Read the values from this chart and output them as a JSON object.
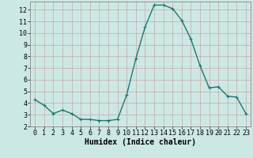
{
  "x": [
    0,
    1,
    2,
    3,
    4,
    5,
    6,
    7,
    8,
    9,
    10,
    11,
    12,
    13,
    14,
    15,
    16,
    17,
    18,
    19,
    20,
    21,
    22,
    23
  ],
  "y": [
    4.3,
    3.8,
    3.1,
    3.4,
    3.1,
    2.6,
    2.6,
    2.5,
    2.5,
    2.6,
    4.7,
    7.8,
    10.5,
    12.4,
    12.4,
    12.1,
    11.1,
    9.5,
    7.2,
    5.3,
    5.4,
    4.6,
    4.5,
    3.1
  ],
  "line_color": "#1a7a6e",
  "marker": "+",
  "marker_size": 3,
  "marker_linewidth": 0.8,
  "bg_color": "#cce8e4",
  "grid_color": "#c8a8a8",
  "xlabel": "Humidex (Indice chaleur)",
  "xlim": [
    -0.5,
    23.5
  ],
  "ylim": [
    2,
    12.7
  ],
  "yticks": [
    2,
    3,
    4,
    5,
    6,
    7,
    8,
    9,
    10,
    11,
    12
  ],
  "xticks": [
    0,
    1,
    2,
    3,
    4,
    5,
    6,
    7,
    8,
    9,
    10,
    11,
    12,
    13,
    14,
    15,
    16,
    17,
    18,
    19,
    20,
    21,
    22,
    23
  ],
  "xlabel_fontsize": 7,
  "tick_fontsize": 6,
  "linewidth": 1.0
}
